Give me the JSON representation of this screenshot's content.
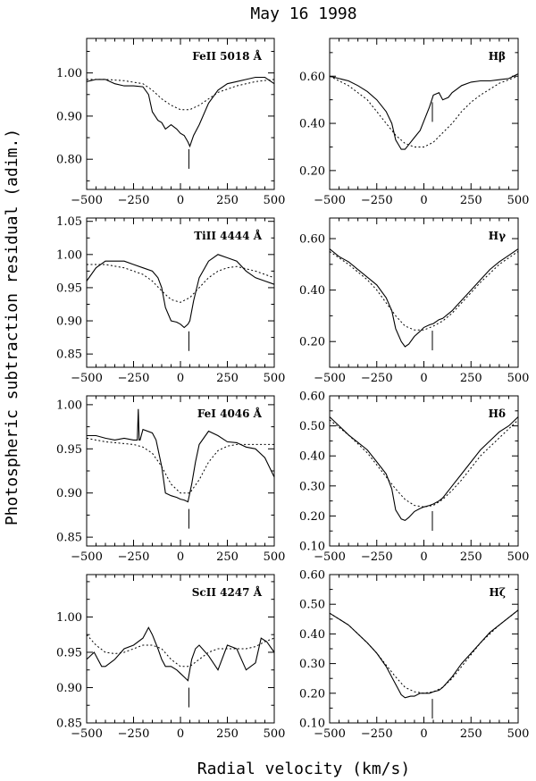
{
  "figure": {
    "title": "May 16 1998",
    "xlabel": "Radial velocity (km/s)",
    "ylabel": "Photospheric subtraction residual (adim.)"
  },
  "chart_data": [
    {
      "type": "line",
      "label": "FeII 5018 Å",
      "xlim": [
        -500,
        500
      ],
      "ylim": [
        0.73,
        1.08
      ],
      "xticks": [
        -500,
        -250,
        0,
        250,
        500
      ],
      "xtick_labels": [
        "−500",
        "−250",
        "0",
        "250",
        "500"
      ],
      "yticks": [
        0.8,
        0.9,
        1.0
      ],
      "ytick_labels": [
        "0.80",
        "0.90",
        "1.00"
      ],
      "marker_x": 45,
      "series": [
        {
          "style": "solid",
          "x": [
            -500,
            -450,
            -400,
            -350,
            -300,
            -250,
            -200,
            -170,
            -150,
            -120,
            -100,
            -80,
            -50,
            -20,
            0,
            20,
            40,
            50,
            70,
            100,
            150,
            200,
            250,
            300,
            350,
            400,
            450,
            500
          ],
          "y": [
            0.98,
            0.985,
            0.985,
            0.975,
            0.97,
            0.97,
            0.968,
            0.95,
            0.91,
            0.89,
            0.885,
            0.87,
            0.88,
            0.87,
            0.86,
            0.855,
            0.84,
            0.83,
            0.855,
            0.88,
            0.93,
            0.96,
            0.975,
            0.98,
            0.985,
            0.99,
            0.99,
            0.975
          ]
        },
        {
          "style": "dotted",
          "x": [
            -500,
            -400,
            -300,
            -200,
            -150,
            -100,
            -50,
            0,
            50,
            100,
            150,
            200,
            300,
            400,
            500
          ],
          "y": [
            0.985,
            0.985,
            0.982,
            0.975,
            0.96,
            0.94,
            0.925,
            0.915,
            0.915,
            0.925,
            0.94,
            0.955,
            0.97,
            0.98,
            0.985
          ]
        }
      ]
    },
    {
      "type": "line",
      "label": "Hβ",
      "xlim": [
        -500,
        500
      ],
      "ylim": [
        0.12,
        0.76
      ],
      "xticks": [
        -500,
        -250,
        0,
        250,
        500
      ],
      "xtick_labels": [
        "−500",
        "−250",
        "0",
        "250",
        "500"
      ],
      "yticks": [
        0.2,
        0.4,
        0.6
      ],
      "ytick_labels": [
        "0.20",
        "0.40",
        "0.60"
      ],
      "marker_x": 45,
      "series": [
        {
          "style": "solid",
          "x": [
            -500,
            -450,
            -400,
            -350,
            -300,
            -250,
            -200,
            -170,
            -150,
            -120,
            -100,
            -80,
            -50,
            -20,
            0,
            30,
            50,
            80,
            100,
            130,
            150,
            200,
            250,
            300,
            350,
            400,
            450,
            500
          ],
          "y": [
            0.6,
            0.59,
            0.58,
            0.56,
            0.535,
            0.5,
            0.45,
            0.4,
            0.33,
            0.29,
            0.29,
            0.31,
            0.34,
            0.37,
            0.41,
            0.47,
            0.52,
            0.53,
            0.5,
            0.51,
            0.53,
            0.56,
            0.575,
            0.58,
            0.58,
            0.585,
            0.59,
            0.61
          ]
        },
        {
          "style": "dotted",
          "x": [
            -500,
            -400,
            -300,
            -250,
            -200,
            -150,
            -100,
            -50,
            0,
            50,
            100,
            150,
            200,
            250,
            300,
            400,
            500
          ],
          "y": [
            0.6,
            0.56,
            0.5,
            0.45,
            0.4,
            0.35,
            0.315,
            0.3,
            0.3,
            0.32,
            0.36,
            0.4,
            0.45,
            0.49,
            0.52,
            0.57,
            0.6
          ]
        }
      ]
    },
    {
      "type": "line",
      "label": "TiII 4444 Å",
      "xlim": [
        -500,
        500
      ],
      "ylim": [
        0.83,
        1.055
      ],
      "xticks": [
        -500,
        -250,
        0,
        250,
        500
      ],
      "xtick_labels": [
        "−500",
        "−250",
        "0",
        "250",
        "500"
      ],
      "yticks": [
        0.85,
        0.9,
        0.95,
        1.0,
        1.05
      ],
      "ytick_labels": [
        "0.85",
        "0.90",
        "0.95",
        "1.00",
        "1.05"
      ],
      "marker_x": 45,
      "series": [
        {
          "style": "solid",
          "x": [
            -500,
            -450,
            -400,
            -350,
            -300,
            -250,
            -200,
            -150,
            -120,
            -100,
            -80,
            -50,
            -20,
            0,
            20,
            40,
            50,
            70,
            100,
            150,
            200,
            250,
            300,
            350,
            400,
            450,
            500
          ],
          "y": [
            0.96,
            0.98,
            0.99,
            0.99,
            0.99,
            0.985,
            0.98,
            0.975,
            0.965,
            0.95,
            0.92,
            0.9,
            0.898,
            0.895,
            0.89,
            0.895,
            0.9,
            0.93,
            0.965,
            0.99,
            1.0,
            0.995,
            0.99,
            0.975,
            0.965,
            0.96,
            0.955
          ]
        },
        {
          "style": "dotted",
          "x": [
            -500,
            -400,
            -300,
            -250,
            -200,
            -150,
            -100,
            -50,
            0,
            50,
            100,
            150,
            200,
            250,
            300,
            400,
            500
          ],
          "y": [
            0.985,
            0.985,
            0.98,
            0.975,
            0.97,
            0.96,
            0.945,
            0.932,
            0.928,
            0.935,
            0.95,
            0.965,
            0.975,
            0.98,
            0.982,
            0.975,
            0.965
          ]
        }
      ]
    },
    {
      "type": "line",
      "label": "Hγ",
      "xlim": [
        -500,
        500
      ],
      "ylim": [
        0.1,
        0.68
      ],
      "xticks": [
        -500,
        -250,
        0,
        250,
        500
      ],
      "xtick_labels": [
        "−500",
        "−250",
        "0",
        "250",
        "500"
      ],
      "yticks": [
        0.2,
        0.4,
        0.6
      ],
      "ytick_labels": [
        "0.20",
        "0.40",
        "0.60"
      ],
      "marker_x": 45,
      "series": [
        {
          "style": "solid",
          "x": [
            -500,
            -450,
            -400,
            -350,
            -300,
            -250,
            -200,
            -170,
            -150,
            -120,
            -100,
            -80,
            -50,
            -20,
            0,
            30,
            50,
            80,
            100,
            150,
            200,
            250,
            300,
            350,
            400,
            450,
            500
          ],
          "y": [
            0.56,
            0.53,
            0.51,
            0.48,
            0.45,
            0.42,
            0.37,
            0.32,
            0.25,
            0.2,
            0.18,
            0.19,
            0.22,
            0.24,
            0.255,
            0.265,
            0.27,
            0.285,
            0.29,
            0.32,
            0.36,
            0.4,
            0.44,
            0.48,
            0.51,
            0.535,
            0.56
          ]
        },
        {
          "style": "dotted",
          "x": [
            -500,
            -400,
            -300,
            -250,
            -200,
            -150,
            -100,
            -50,
            0,
            50,
            100,
            150,
            200,
            250,
            300,
            400,
            500
          ],
          "y": [
            0.55,
            0.5,
            0.44,
            0.4,
            0.35,
            0.3,
            0.26,
            0.245,
            0.245,
            0.26,
            0.28,
            0.31,
            0.35,
            0.39,
            0.43,
            0.5,
            0.55
          ]
        }
      ]
    },
    {
      "type": "line",
      "label": "FeI 4046 Å",
      "xlim": [
        -500,
        500
      ],
      "ylim": [
        0.84,
        1.01
      ],
      "xticks": [
        -500,
        -250,
        0,
        250,
        500
      ],
      "xtick_labels": [
        "−500",
        "−250",
        "0",
        "250",
        "500"
      ],
      "yticks": [
        0.85,
        0.9,
        0.95,
        1.0
      ],
      "ytick_labels": [
        "0.85",
        "0.90",
        "0.95",
        "1.00"
      ],
      "marker_x": 45,
      "series": [
        {
          "style": "solid",
          "x": [
            -500,
            -450,
            -400,
            -350,
            -300,
            -250,
            -230,
            -225,
            -220,
            -215,
            -200,
            -150,
            -130,
            -100,
            -80,
            -50,
            -20,
            0,
            20,
            40,
            60,
            80,
            100,
            150,
            200,
            250,
            300,
            350,
            400,
            450,
            500
          ],
          "y": [
            0.965,
            0.965,
            0.962,
            0.96,
            0.962,
            0.96,
            0.96,
            0.995,
            0.96,
            0.96,
            0.972,
            0.968,
            0.96,
            0.93,
            0.9,
            0.897,
            0.895,
            0.893,
            0.892,
            0.89,
            0.91,
            0.935,
            0.955,
            0.97,
            0.965,
            0.958,
            0.957,
            0.952,
            0.95,
            0.94,
            0.918
          ]
        },
        {
          "style": "dotted",
          "x": [
            -500,
            -400,
            -300,
            -250,
            -200,
            -150,
            -100,
            -50,
            0,
            50,
            100,
            150,
            200,
            250,
            300,
            400,
            500
          ],
          "y": [
            0.962,
            0.958,
            0.956,
            0.955,
            0.952,
            0.945,
            0.93,
            0.91,
            0.9,
            0.9,
            0.915,
            0.935,
            0.948,
            0.953,
            0.955,
            0.955,
            0.955
          ]
        }
      ]
    },
    {
      "type": "line",
      "label": "Hδ",
      "xlim": [
        -500,
        500
      ],
      "ylim": [
        0.1,
        0.6
      ],
      "xticks": [
        -500,
        -250,
        0,
        250,
        500
      ],
      "xtick_labels": [
        "−500",
        "−250",
        "0",
        "250",
        "500"
      ],
      "yticks": [
        0.1,
        0.2,
        0.3,
        0.4,
        0.5,
        0.6
      ],
      "ytick_labels": [
        "0.10",
        "0.20",
        "0.30",
        "0.40",
        "0.50",
        "0.60"
      ],
      "marker_x": 45,
      "series": [
        {
          "style": "solid",
          "x": [
            -500,
            -450,
            -400,
            -350,
            -300,
            -250,
            -200,
            -170,
            -150,
            -120,
            -100,
            -80,
            -50,
            -20,
            0,
            30,
            50,
            80,
            100,
            150,
            200,
            250,
            300,
            350,
            400,
            450,
            500
          ],
          "y": [
            0.53,
            0.5,
            0.47,
            0.445,
            0.42,
            0.38,
            0.34,
            0.29,
            0.22,
            0.19,
            0.185,
            0.195,
            0.215,
            0.225,
            0.23,
            0.235,
            0.24,
            0.25,
            0.26,
            0.3,
            0.34,
            0.38,
            0.42,
            0.45,
            0.48,
            0.5,
            0.53
          ]
        },
        {
          "style": "dotted",
          "x": [
            -500,
            -400,
            -300,
            -250,
            -200,
            -150,
            -100,
            -50,
            0,
            50,
            100,
            150,
            200,
            250,
            300,
            400,
            500
          ],
          "y": [
            0.52,
            0.47,
            0.41,
            0.37,
            0.33,
            0.29,
            0.255,
            0.235,
            0.23,
            0.235,
            0.255,
            0.285,
            0.32,
            0.36,
            0.4,
            0.46,
            0.52
          ]
        }
      ]
    },
    {
      "type": "line",
      "label": "ScII 4247 Å",
      "xlim": [
        -500,
        500
      ],
      "ylim": [
        0.85,
        1.06
      ],
      "xticks": [
        -500,
        -250,
        0,
        250,
        500
      ],
      "xtick_labels": [
        "−500",
        "−250",
        "0",
        "250",
        "500"
      ],
      "yticks": [
        0.85,
        0.9,
        0.95,
        1.0
      ],
      "ytick_labels": [
        "0.85",
        "0.90",
        "0.95",
        "1.00"
      ],
      "marker_x": 45,
      "series": [
        {
          "style": "solid",
          "x": [
            -500,
            -460,
            -420,
            -400,
            -350,
            -300,
            -250,
            -200,
            -170,
            -150,
            -120,
            -100,
            -80,
            -50,
            -20,
            0,
            20,
            40,
            60,
            80,
            100,
            150,
            200,
            250,
            300,
            350,
            400,
            430,
            460,
            500
          ],
          "y": [
            0.94,
            0.95,
            0.93,
            0.93,
            0.94,
            0.955,
            0.96,
            0.97,
            0.985,
            0.975,
            0.955,
            0.94,
            0.93,
            0.93,
            0.925,
            0.92,
            0.915,
            0.91,
            0.94,
            0.955,
            0.96,
            0.945,
            0.925,
            0.96,
            0.955,
            0.925,
            0.935,
            0.97,
            0.965,
            0.95
          ]
        },
        {
          "style": "dotted",
          "x": [
            -500,
            -450,
            -400,
            -350,
            -300,
            -250,
            -200,
            -150,
            -100,
            -50,
            0,
            50,
            100,
            150,
            200,
            250,
            300,
            350,
            400,
            450,
            500
          ],
          "y": [
            0.975,
            0.96,
            0.95,
            0.948,
            0.95,
            0.955,
            0.96,
            0.96,
            0.955,
            0.94,
            0.93,
            0.93,
            0.94,
            0.95,
            0.955,
            0.955,
            0.955,
            0.955,
            0.958,
            0.965,
            0.97
          ]
        }
      ]
    },
    {
      "type": "line",
      "label": "Hζ",
      "xlim": [
        -500,
        500
      ],
      "ylim": [
        0.1,
        0.6
      ],
      "xticks": [
        -500,
        -250,
        0,
        250,
        500
      ],
      "xtick_labels": [
        "−500",
        "−250",
        "0",
        "250",
        "500"
      ],
      "yticks": [
        0.1,
        0.2,
        0.3,
        0.4,
        0.5,
        0.6
      ],
      "ytick_labels": [
        "0.10",
        "0.20",
        "0.30",
        "0.40",
        "0.50",
        "0.60"
      ],
      "marker_x": 45,
      "series": [
        {
          "style": "solid",
          "x": [
            -500,
            -450,
            -400,
            -350,
            -300,
            -250,
            -200,
            -150,
            -120,
            -100,
            -70,
            -50,
            -20,
            0,
            30,
            50,
            80,
            100,
            150,
            200,
            250,
            300,
            350,
            400,
            450,
            500
          ],
          "y": [
            0.47,
            0.45,
            0.43,
            0.4,
            0.37,
            0.335,
            0.29,
            0.23,
            0.195,
            0.185,
            0.19,
            0.19,
            0.2,
            0.2,
            0.2,
            0.205,
            0.21,
            0.22,
            0.255,
            0.3,
            0.335,
            0.37,
            0.405,
            0.43,
            0.455,
            0.48
          ]
        },
        {
          "style": "dotted",
          "x": [
            -500,
            -400,
            -300,
            -250,
            -200,
            -150,
            -100,
            -50,
            0,
            50,
            100,
            150,
            200,
            250,
            300,
            400,
            500
          ],
          "y": [
            0.47,
            0.43,
            0.37,
            0.335,
            0.295,
            0.255,
            0.22,
            0.205,
            0.2,
            0.205,
            0.22,
            0.25,
            0.29,
            0.33,
            0.37,
            0.43,
            0.48
          ]
        }
      ]
    }
  ]
}
